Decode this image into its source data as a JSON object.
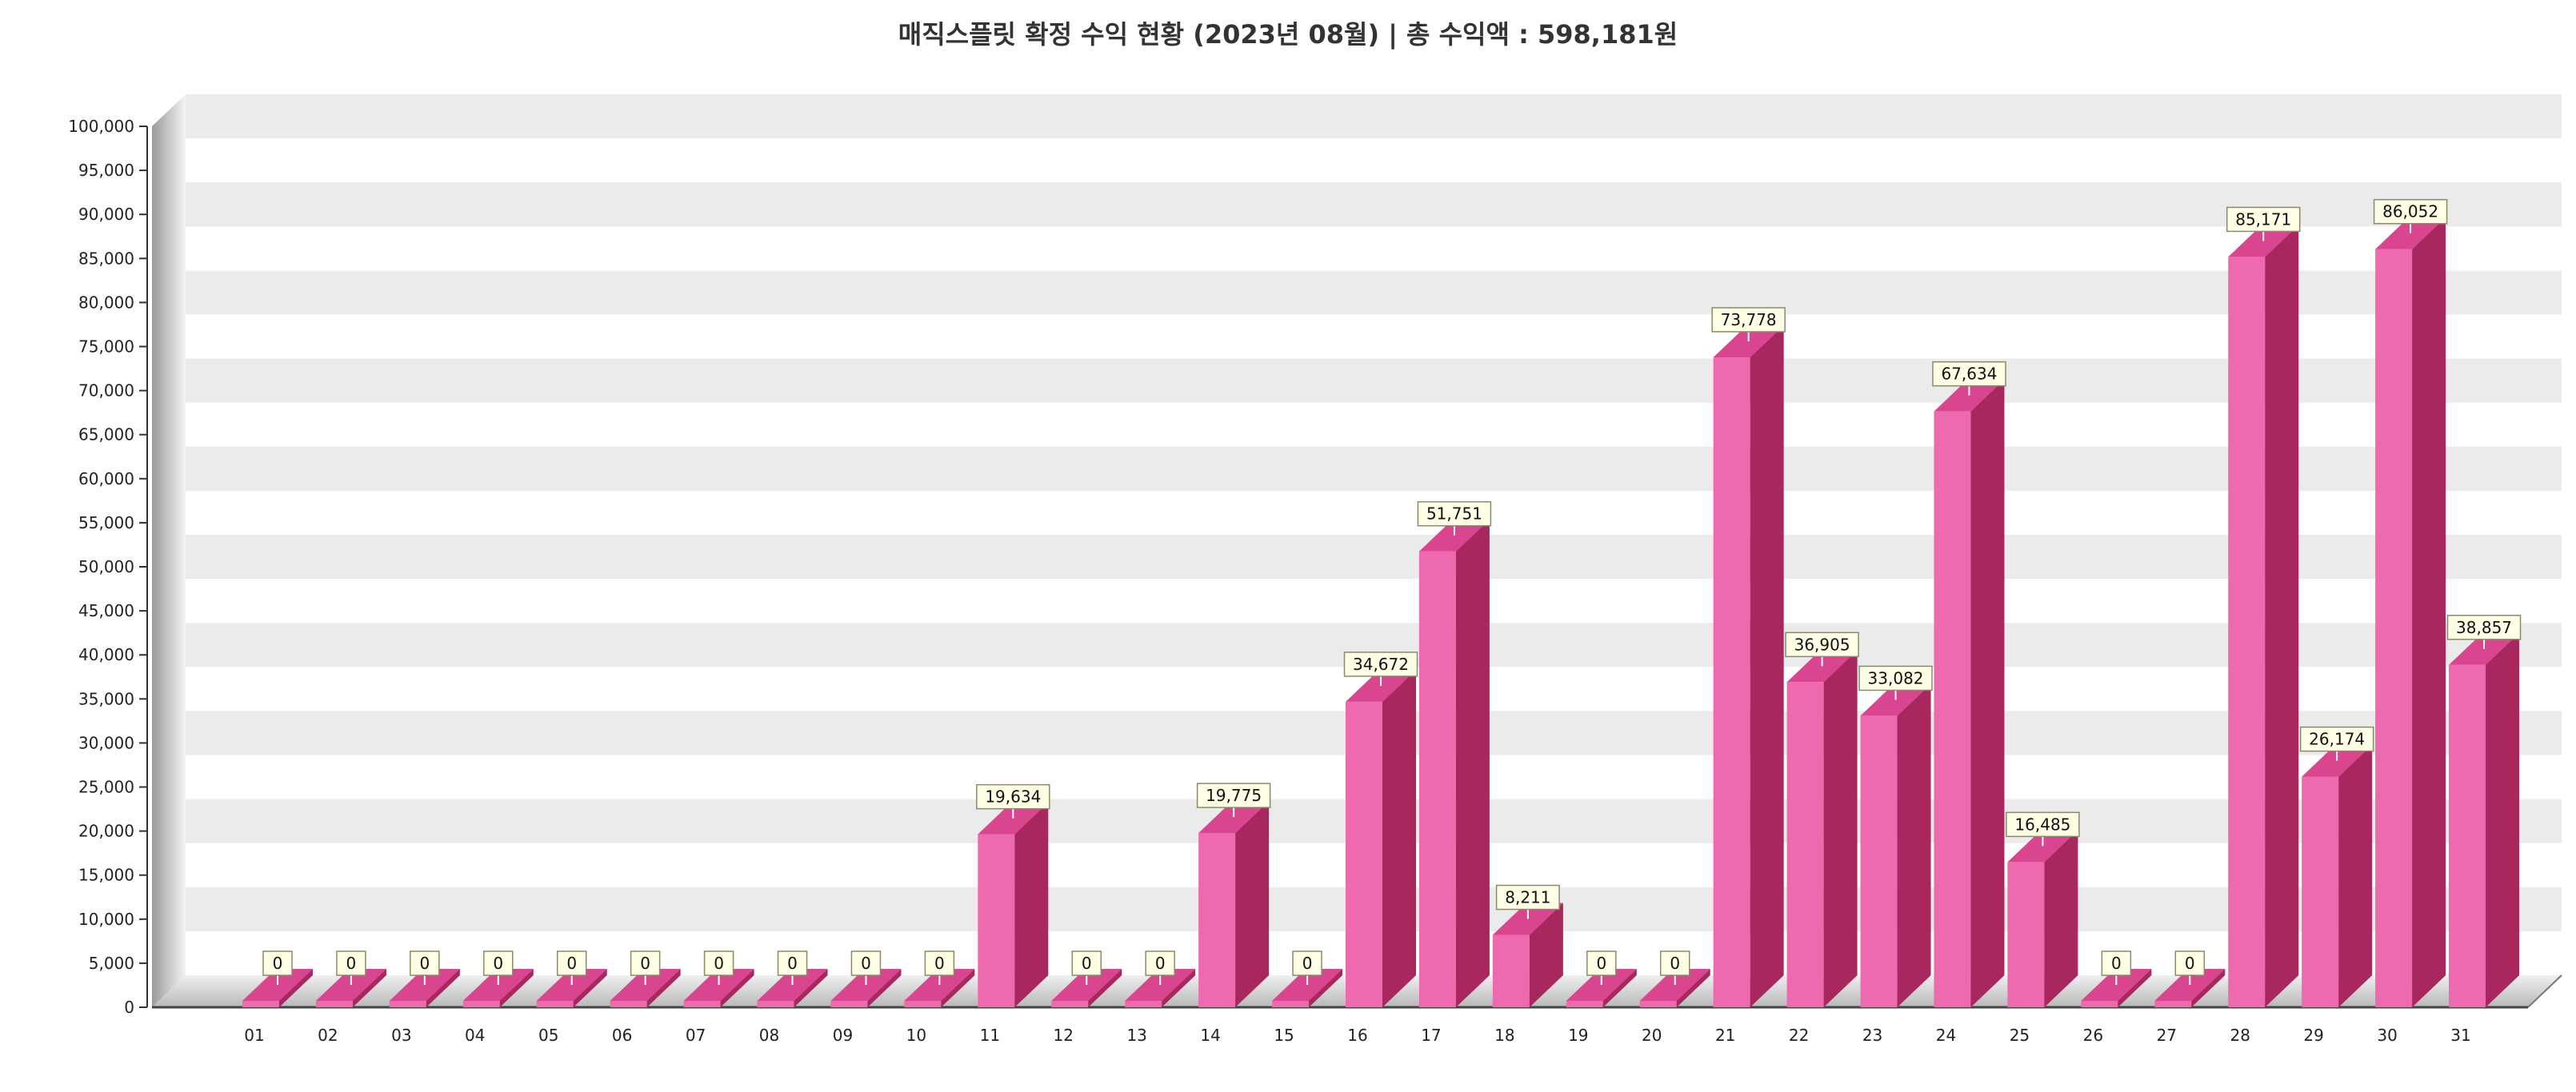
{
  "title": "매직스플릿 확정 수익 현황 (2023년 08월)  |  총 수익액 : 598,181원",
  "chart_data": {
    "type": "bar",
    "title": "매직스플릿 확정 수익 현황 (2023년 08월)  |  총 수익액 : 598,181원",
    "xlabel": "",
    "ylabel": "",
    "ylim": [
      0,
      100000
    ],
    "y_ticks": [
      "0",
      "5,000",
      "10,000",
      "15,000",
      "20,000",
      "25,000",
      "30,000",
      "35,000",
      "40,000",
      "45,000",
      "50,000",
      "55,000",
      "60,000",
      "65,000",
      "70,000",
      "75,000",
      "80,000",
      "85,000",
      "90,000",
      "95,000",
      "100,000"
    ],
    "grid": "horizontal alternating bands",
    "legend": "none",
    "categories": [
      "01",
      "02",
      "03",
      "04",
      "05",
      "06",
      "07",
      "08",
      "09",
      "10",
      "11",
      "12",
      "13",
      "14",
      "15",
      "16",
      "17",
      "18",
      "19",
      "20",
      "21",
      "22",
      "23",
      "24",
      "25",
      "26",
      "27",
      "28",
      "29",
      "30",
      "31"
    ],
    "values": [
      0,
      0,
      0,
      0,
      0,
      0,
      0,
      0,
      0,
      0,
      19634,
      0,
      0,
      19775,
      0,
      34672,
      51751,
      8211,
      0,
      0,
      73778,
      36905,
      33082,
      67634,
      16485,
      0,
      0,
      85171,
      26174,
      86052,
      38857
    ],
    "value_labels": [
      "0",
      "0",
      "0",
      "0",
      "0",
      "0",
      "0",
      "0",
      "0",
      "0",
      "19,634",
      "0",
      "0",
      "19,775",
      "0",
      "34,672",
      "51,751",
      "8,211",
      "0",
      "0",
      "73,778",
      "36,905",
      "33,082",
      "67,634",
      "16,485",
      "0",
      "0",
      "85,171",
      "26,174",
      "86,052",
      "38,857"
    ],
    "colors": {
      "bar_front": "#ee6aae",
      "bar_top": "#d9458f",
      "bar_side": "#a8275f",
      "band": "#ebebeb",
      "label_bg": "#ffffe6"
    }
  }
}
